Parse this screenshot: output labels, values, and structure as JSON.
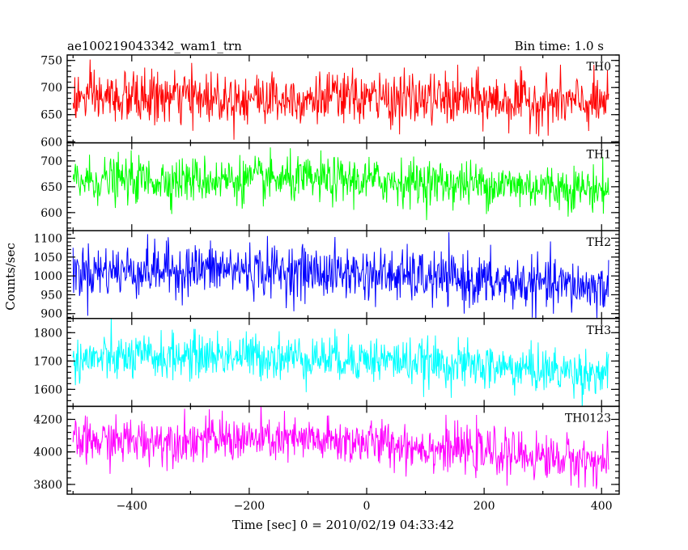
{
  "chart_data": {
    "type": "line",
    "title": "ae100219043342_wam1_trn",
    "subtitle": "Bin time: 1.0 s",
    "xlabel": "Time [sec] 0 = 2010/02/19 04:33:42",
    "ylabel": "Counts/sec",
    "xlim": [
      -510,
      430
    ],
    "x_ticks": [
      -400,
      -200,
      0,
      200,
      400
    ],
    "x_tick_labels": [
      "−400",
      "−200",
      "0",
      "200",
      "400"
    ],
    "x_range": [
      -500,
      412
    ],
    "bin_time": 1.0,
    "grid": false,
    "panels": [
      {
        "name": "TH0",
        "color": "#ff0000",
        "ylim": [
          598,
          760
        ],
        "y_ticks": [
          600,
          650,
          700,
          750
        ],
        "y_tick_labels": [
          "600",
          "650",
          "700",
          "750"
        ],
        "trend": [
          [
            -500,
            680
          ],
          [
            -250,
            682
          ],
          [
            0,
            680
          ],
          [
            200,
            676
          ],
          [
            412,
            670
          ]
        ],
        "spread": 24
      },
      {
        "name": "TH1",
        "color": "#00ff00",
        "ylim": [
          565,
          735
        ],
        "y_ticks": [
          600,
          650,
          700
        ],
        "y_tick_labels": [
          "600",
          "650",
          "700"
        ],
        "trend": [
          [
            -500,
            662
          ],
          [
            -250,
            664
          ],
          [
            0,
            662
          ],
          [
            200,
            655
          ],
          [
            412,
            645
          ]
        ],
        "spread": 22
      },
      {
        "name": "TH2",
        "color": "#0000ff",
        "ylim": [
          887,
          1120
        ],
        "y_ticks": [
          900,
          950,
          1000,
          1050,
          1100
        ],
        "y_tick_labels": [
          "900",
          "950",
          "1000",
          "1050",
          "1100"
        ],
        "trend": [
          [
            -500,
            1012
          ],
          [
            -250,
            1018
          ],
          [
            0,
            1005
          ],
          [
            200,
            985
          ],
          [
            412,
            968
          ]
        ],
        "spread": 35
      },
      {
        "name": "TH3",
        "color": "#00ffff",
        "ylim": [
          1540,
          1850
        ],
        "y_ticks": [
          1600,
          1700,
          1800
        ],
        "y_tick_labels": [
          "1600",
          "1700",
          "1800"
        ],
        "trend": [
          [
            -500,
            1705
          ],
          [
            -250,
            1720
          ],
          [
            0,
            1708
          ],
          [
            200,
            1680
          ],
          [
            412,
            1655
          ]
        ],
        "spread": 40
      },
      {
        "name": "TH0123",
        "color": "#ff00ff",
        "ylim": [
          3740,
          4280
        ],
        "y_ticks": [
          3800,
          4000,
          4200
        ],
        "y_tick_labels": [
          "3800",
          "4000",
          "4200"
        ],
        "trend": [
          [
            -500,
            4060
          ],
          [
            -250,
            4080
          ],
          [
            0,
            4060
          ],
          [
            200,
            4000
          ],
          [
            412,
            3935
          ]
        ],
        "spread": 70
      }
    ]
  }
}
